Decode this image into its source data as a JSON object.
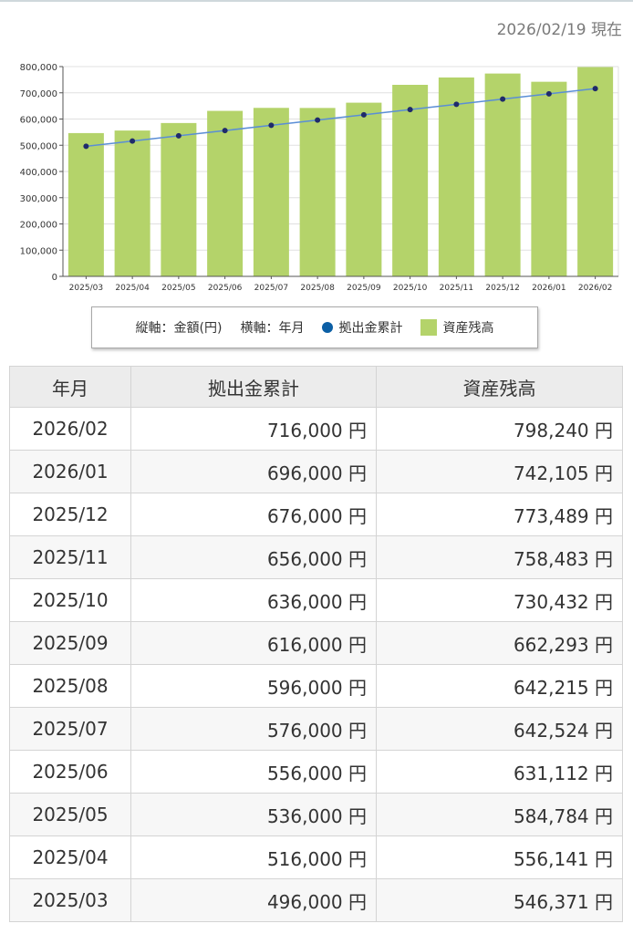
{
  "as_of_label": "2026/02/19 現在",
  "chart_data": {
    "type": "bar",
    "categories": [
      "2025/03",
      "2025/04",
      "2025/05",
      "2025/06",
      "2025/07",
      "2025/08",
      "2025/09",
      "2025/10",
      "2025/11",
      "2025/12",
      "2026/01",
      "2026/02"
    ],
    "series": [
      {
        "name": "資産残高",
        "type": "bar",
        "color": "#b4d36a",
        "values": [
          546371,
          556141,
          584784,
          631112,
          642524,
          642215,
          662293,
          730432,
          758483,
          773489,
          742105,
          798240
        ]
      },
      {
        "name": "拠出金累計",
        "type": "line",
        "color": "#5a8ed6",
        "marker_color": "#1f2a6b",
        "values": [
          496000,
          516000,
          536000,
          556000,
          576000,
          596000,
          616000,
          636000,
          656000,
          676000,
          696000,
          716000
        ]
      }
    ],
    "ylim": [
      0,
      800000
    ],
    "yticks": [
      "0",
      "100,000",
      "200,000",
      "300,000",
      "400,000",
      "500,000",
      "600,000",
      "700,000",
      "800,000"
    ],
    "grid": true
  },
  "legend": {
    "axis_y": "縦軸：金額(円)",
    "axis_x": "横軸：年月",
    "series_line": "拠出金累計",
    "series_bar": "資産残高"
  },
  "table": {
    "headers": [
      "年月",
      "拠出金累計",
      "資産残高"
    ],
    "rows": [
      {
        "month": "2026/02",
        "contrib": "716,000 円",
        "balance": "798,240 円"
      },
      {
        "month": "2026/01",
        "contrib": "696,000 円",
        "balance": "742,105 円"
      },
      {
        "month": "2025/12",
        "contrib": "676,000 円",
        "balance": "773,489 円"
      },
      {
        "month": "2025/11",
        "contrib": "656,000 円",
        "balance": "758,483 円"
      },
      {
        "month": "2025/10",
        "contrib": "636,000 円",
        "balance": "730,432 円"
      },
      {
        "month": "2025/09",
        "contrib": "616,000 円",
        "balance": "662,293 円"
      },
      {
        "month": "2025/08",
        "contrib": "596,000 円",
        "balance": "642,215 円"
      },
      {
        "month": "2025/07",
        "contrib": "576,000 円",
        "balance": "642,524 円"
      },
      {
        "month": "2025/06",
        "contrib": "556,000 円",
        "balance": "631,112 円"
      },
      {
        "month": "2025/05",
        "contrib": "536,000 円",
        "balance": "584,784 円"
      },
      {
        "month": "2025/04",
        "contrib": "516,000 円",
        "balance": "556,141 円"
      },
      {
        "month": "2025/03",
        "contrib": "496,000 円",
        "balance": "546,371 円"
      }
    ]
  }
}
